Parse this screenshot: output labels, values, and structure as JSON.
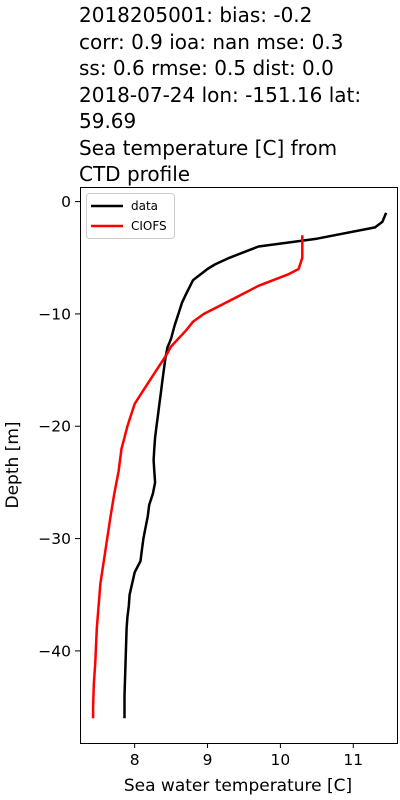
{
  "chart_data": {
    "type": "line",
    "title": "2018205001: bias: -0.2\ncorr: 0.9  ioa: nan  mse: 0.3\nss: 0.6  rmse: 0.5  dist: 0.0\n2018-07-24 lon: -151.16 lat:\n59.69\nSea temperature [C] from\nCTD profile",
    "xlabel": "Sea water temperature [C]",
    "ylabel": "Depth [m]",
    "xlim": [
      7.25,
      11.6
    ],
    "ylim": [
      -48.2,
      1.3
    ],
    "xticks": [
      8,
      9,
      10,
      11
    ],
    "xtick_labels": [
      "8",
      "9",
      "10",
      "11"
    ],
    "yticks": [
      0,
      -10,
      -20,
      -30,
      -40
    ],
    "ytick_labels": [
      "0",
      "−10",
      "−20",
      "−30",
      "−40"
    ],
    "grid": false,
    "legend": "top-left",
    "series": [
      {
        "name": "data",
        "color": "#000000",
        "x": [
          11.45,
          11.4,
          11.3,
          10.5,
          9.7,
          9.3,
          9.1,
          9.0,
          8.9,
          8.8,
          8.7,
          8.65,
          8.6,
          8.55,
          8.5,
          8.45,
          8.42,
          8.4,
          8.38,
          8.36,
          8.34,
          8.32,
          8.3,
          8.28,
          8.27,
          8.26,
          8.27,
          8.28,
          8.25,
          8.2,
          8.18,
          8.15,
          8.12,
          8.1,
          8.08,
          8.0,
          7.93,
          7.92,
          7.9,
          7.89,
          7.88,
          7.87,
          7.86,
          7.86
        ],
        "y": [
          -1,
          -1.8,
          -2.3,
          -3.3,
          -4,
          -5,
          -5.6,
          -6,
          -6.5,
          -7,
          -8.3,
          -9,
          -10,
          -11,
          -12.2,
          -13,
          -14,
          -15,
          -16,
          -17,
          -18,
          -19,
          -20,
          -21,
          -22,
          -23,
          -24,
          -25,
          -26,
          -27,
          -28,
          -29,
          -30,
          -31,
          -32,
          -33,
          -35,
          -36,
          -37,
          -38,
          -40,
          -42,
          -44,
          -46
        ]
      },
      {
        "name": "CIOFS",
        "color": "#ff0000",
        "x": [
          10.3,
          10.3,
          10.3,
          10.25,
          10.1,
          9.7,
          9.4,
          8.95,
          8.8,
          8.7,
          8.6,
          8.5,
          8.45,
          8.4,
          8.3,
          8.2,
          8.1,
          8.0,
          7.9,
          7.86,
          7.82,
          7.78,
          7.72,
          7.67,
          7.6,
          7.53,
          7.48,
          7.46,
          7.44,
          7.43,
          7.43
        ],
        "y": [
          -3,
          -4,
          -5,
          -6,
          -6.5,
          -7.5,
          -8.5,
          -10,
          -10.7,
          -11.5,
          -12.2,
          -12.9,
          -13.5,
          -14,
          -15,
          -16,
          -17,
          -18,
          -20,
          -21,
          -22,
          -24,
          -26,
          -28,
          -31,
          -34,
          -38,
          -41,
          -43,
          -45,
          -46
        ]
      }
    ]
  }
}
